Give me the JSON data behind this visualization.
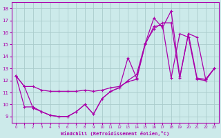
{
  "xlabel": "Windchill (Refroidissement éolien,°C)",
  "background_color": "#cceaea",
  "grid_color": "#aacccc",
  "line_color": "#aa00aa",
  "xlim": [
    -0.5,
    23.5
  ],
  "ylim": [
    8.5,
    18.5
  ],
  "xticks": [
    0,
    1,
    2,
    3,
    4,
    5,
    6,
    7,
    8,
    9,
    10,
    11,
    12,
    13,
    14,
    15,
    16,
    17,
    18,
    19,
    20,
    21,
    22,
    23
  ],
  "yticks": [
    9,
    10,
    11,
    12,
    13,
    14,
    15,
    16,
    17,
    18
  ],
  "line1_x": [
    0,
    1,
    2,
    3,
    4,
    5,
    6,
    7,
    8,
    9,
    10,
    11,
    12,
    13,
    14,
    15,
    16,
    17,
    18,
    19,
    20,
    21,
    22,
    23
  ],
  "line1_y": [
    12.4,
    11.5,
    11.5,
    11.2,
    11.1,
    11.1,
    11.1,
    11.1,
    11.2,
    11.1,
    11.2,
    11.4,
    11.5,
    11.9,
    12.1,
    15.0,
    16.5,
    16.6,
    12.2,
    15.9,
    15.6,
    12.1,
    12.0,
    13.0
  ],
  "line2_x": [
    0,
    1,
    2,
    3,
    4,
    5,
    6,
    7,
    8,
    9,
    10,
    11,
    12,
    13,
    14,
    15,
    16,
    17,
    18,
    19,
    20,
    21,
    22,
    23
  ],
  "line2_y": [
    12.4,
    11.5,
    9.7,
    9.4,
    9.1,
    9.0,
    9.0,
    9.4,
    10.0,
    9.2,
    10.5,
    11.1,
    11.4,
    13.9,
    12.2,
    15.1,
    17.2,
    16.4,
    17.8,
    12.3,
    15.9,
    15.6,
    12.1,
    13.0
  ],
  "line3_x": [
    0,
    1,
    2,
    3,
    4,
    5,
    6,
    7,
    8,
    9,
    10,
    11,
    12,
    13,
    14,
    15,
    16,
    17,
    18,
    19,
    20,
    21,
    22,
    23
  ],
  "line3_y": [
    12.4,
    9.8,
    9.8,
    9.4,
    9.1,
    9.0,
    9.0,
    9.4,
    10.0,
    9.2,
    10.5,
    11.1,
    11.4,
    12.0,
    12.5,
    15.1,
    16.3,
    16.8,
    16.8,
    12.2,
    15.9,
    12.2,
    12.1,
    13.0
  ]
}
